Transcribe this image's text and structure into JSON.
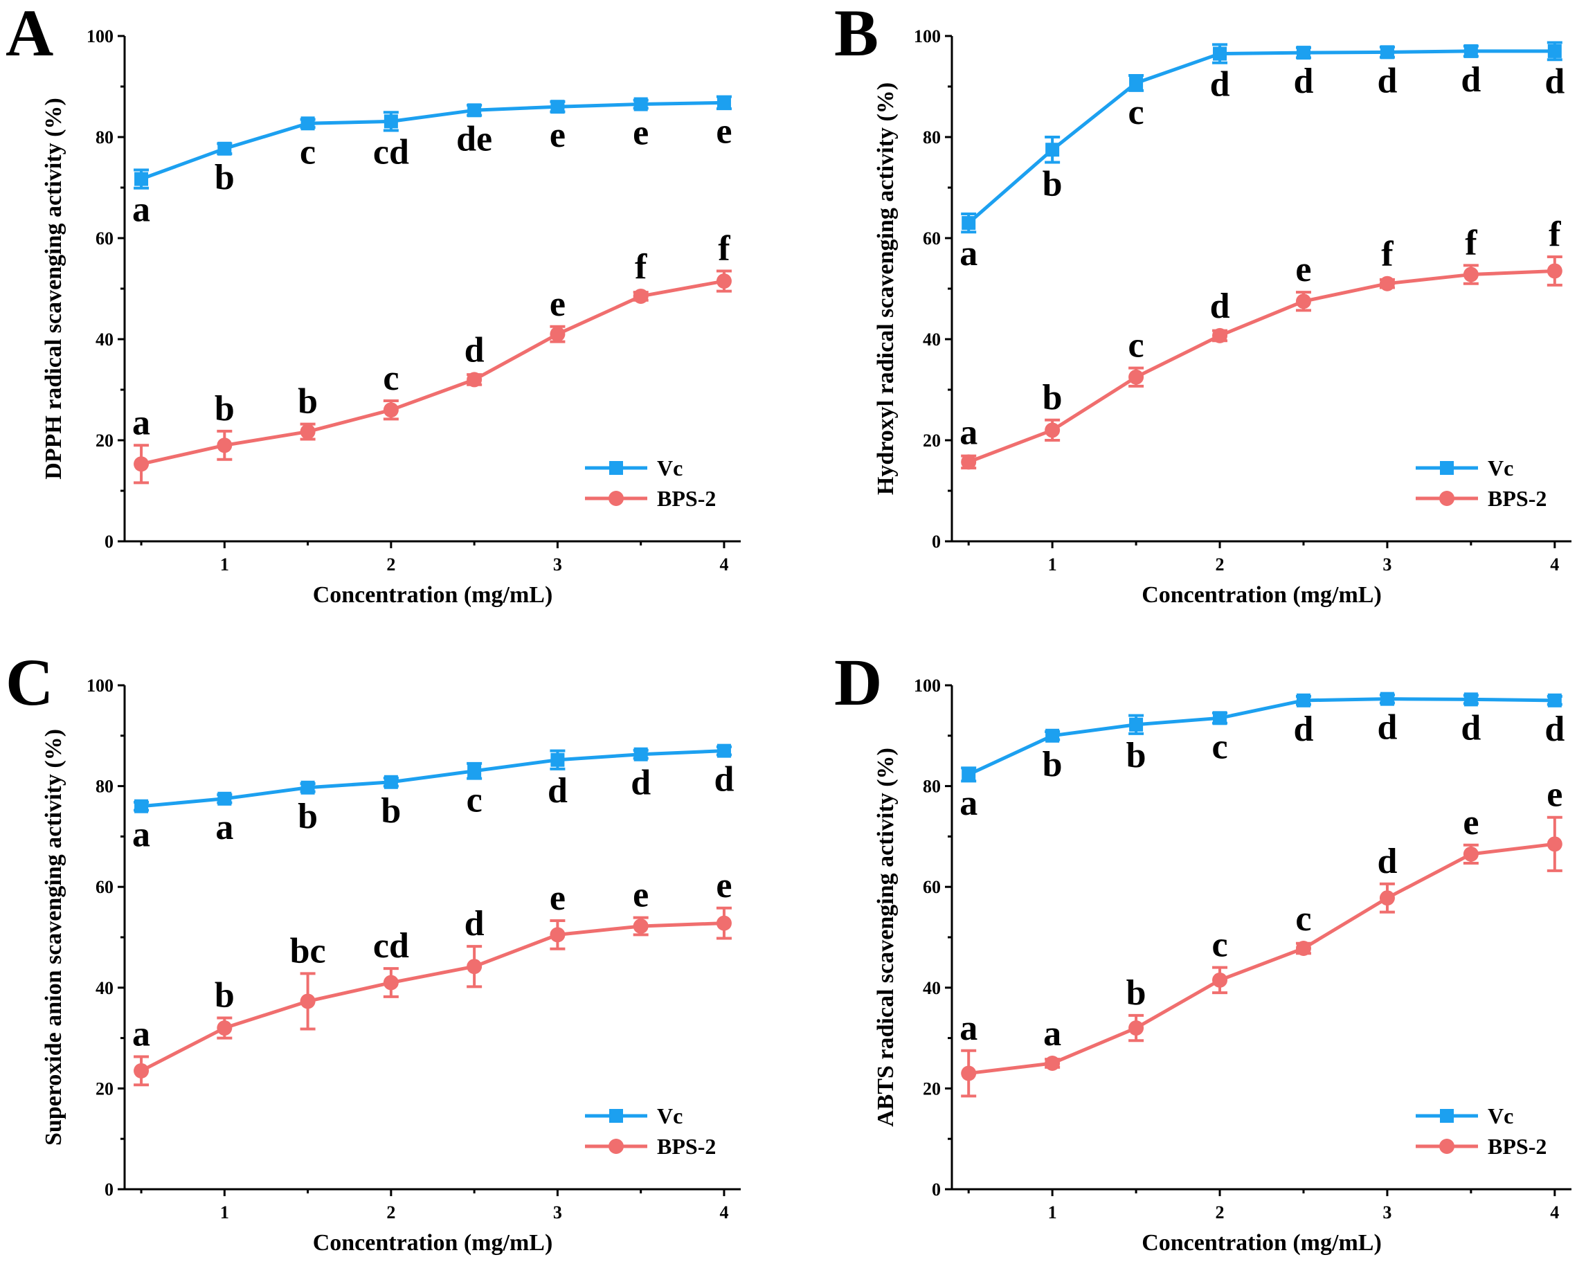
{
  "colors": {
    "vc": "#1ca0f0",
    "bps2": "#f06e6e"
  },
  "chart_data": [
    {
      "type": "line",
      "panel": "A",
      "ylabel": "DPPH radical scavenging activity (%)",
      "xlabel": "Concentration (mg/mL)",
      "ylim": [
        0,
        100
      ],
      "yticks": [
        "0",
        "20",
        "40",
        "60",
        "80",
        "100"
      ],
      "xticks": [
        "1",
        "2",
        "3",
        "4"
      ],
      "x": [
        0.5,
        1,
        1.5,
        2,
        2.5,
        3,
        3.5,
        4
      ],
      "legend": "bottom-right",
      "series": [
        {
          "name": "Vc",
          "marker": "square",
          "values": [
            71.7,
            77.7,
            82.7,
            83.1,
            85.3,
            86.0,
            86.5,
            86.8
          ],
          "errors": [
            1.8,
            1.0,
            0.8,
            1.8,
            1.0,
            1.0,
            0.8,
            1.2
          ],
          "labels": [
            "a",
            "b",
            "c",
            "cd",
            "de",
            "e",
            "e",
            "e"
          ]
        },
        {
          "name": "BPS-2",
          "marker": "circle",
          "values": [
            15.3,
            19.0,
            21.7,
            26.0,
            32.0,
            41.0,
            48.5,
            51.5
          ],
          "errors": [
            3.7,
            2.8,
            1.5,
            1.8,
            1.0,
            1.5,
            0.8,
            2.0
          ],
          "labels": [
            "a",
            "b",
            "b",
            "c",
            "d",
            "e",
            "f",
            "f"
          ]
        }
      ]
    },
    {
      "type": "line",
      "panel": "B",
      "ylabel": "Hydroxyl radical scavenging activity (%)",
      "xlabel": "Concentration (mg/mL)",
      "ylim": [
        0,
        100
      ],
      "yticks": [
        "0",
        "20",
        "40",
        "60",
        "80",
        "100"
      ],
      "xticks": [
        "1",
        "2",
        "3",
        "4"
      ],
      "x": [
        0.5,
        1,
        1.5,
        2,
        2.5,
        3,
        3.5,
        4
      ],
      "legend": "bottom-right",
      "series": [
        {
          "name": "Vc",
          "marker": "square",
          "values": [
            63.0,
            77.5,
            90.7,
            96.5,
            96.7,
            96.8,
            97.0,
            97.0
          ],
          "errors": [
            1.8,
            2.5,
            1.5,
            1.8,
            1.0,
            1.0,
            1.0,
            1.7
          ],
          "labels": [
            "a",
            "b",
            "c",
            "d",
            "d",
            "d",
            "d",
            "d"
          ]
        },
        {
          "name": "BPS-2",
          "marker": "circle",
          "values": [
            15.7,
            22.0,
            32.5,
            40.7,
            47.5,
            51.0,
            52.8,
            53.5
          ],
          "errors": [
            1.2,
            2.0,
            1.8,
            1.0,
            1.8,
            0.8,
            1.8,
            2.8
          ],
          "labels": [
            "a",
            "b",
            "c",
            "d",
            "e",
            "f",
            "f",
            "f"
          ]
        }
      ]
    },
    {
      "type": "line",
      "panel": "C",
      "ylabel": "Superoxide anion scavenging activity (%)",
      "xlabel": "Concentration (mg/mL)",
      "ylim": [
        0,
        100
      ],
      "yticks": [
        "0",
        "20",
        "40",
        "60",
        "80",
        "100"
      ],
      "xticks": [
        "1",
        "2",
        "3",
        "4"
      ],
      "x": [
        0.5,
        1,
        1.5,
        2,
        2.5,
        3,
        3.5,
        4
      ],
      "legend": "bottom-right",
      "series": [
        {
          "name": "Vc",
          "marker": "square",
          "values": [
            76.0,
            77.5,
            79.7,
            80.8,
            83.0,
            85.2,
            86.3,
            87.0
          ],
          "errors": [
            0.8,
            0.8,
            0.8,
            0.8,
            1.5,
            1.8,
            0.8,
            0.8
          ],
          "labels": [
            "a",
            "a",
            "b",
            "b",
            "c",
            "d",
            "d",
            "d"
          ]
        },
        {
          "name": "BPS-2",
          "marker": "circle",
          "values": [
            23.5,
            32.0,
            37.3,
            41.0,
            44.2,
            50.5,
            52.2,
            52.8
          ],
          "errors": [
            2.8,
            2.0,
            5.5,
            2.8,
            4.0,
            2.8,
            1.7,
            3.0
          ],
          "labels": [
            "a",
            "b",
            "bc",
            "cd",
            "d",
            "e",
            "e",
            "e"
          ]
        }
      ]
    },
    {
      "type": "line",
      "panel": "D",
      "ylabel": "ABTS radical scavenging activity (%)",
      "xlabel": "Concentration (mg/mL)",
      "ylim": [
        0,
        100
      ],
      "yticks": [
        "0",
        "20",
        "40",
        "60",
        "80",
        "100"
      ],
      "xticks": [
        "1",
        "2",
        "3",
        "4"
      ],
      "x": [
        0.5,
        1,
        1.5,
        2,
        2.5,
        3,
        3.5,
        4
      ],
      "legend": "bottom-right",
      "series": [
        {
          "name": "Vc",
          "marker": "square",
          "values": [
            82.3,
            90.0,
            92.2,
            93.5,
            97.0,
            97.3,
            97.2,
            97.0
          ],
          "errors": [
            1.3,
            0.8,
            1.8,
            1.0,
            0.8,
            0.8,
            0.8,
            0.8
          ],
          "labels": [
            "a",
            "b",
            "b",
            "c",
            "d",
            "d",
            "d",
            "d"
          ]
        },
        {
          "name": "BPS-2",
          "marker": "circle",
          "values": [
            23.0,
            25.0,
            32.0,
            41.5,
            47.8,
            57.8,
            66.5,
            68.5
          ],
          "errors": [
            4.5,
            0.8,
            2.5,
            2.5,
            1.0,
            2.8,
            1.8,
            5.3
          ],
          "labels": [
            "a",
            "a",
            "b",
            "c",
            "c",
            "d",
            "e",
            "e"
          ]
        }
      ]
    }
  ]
}
